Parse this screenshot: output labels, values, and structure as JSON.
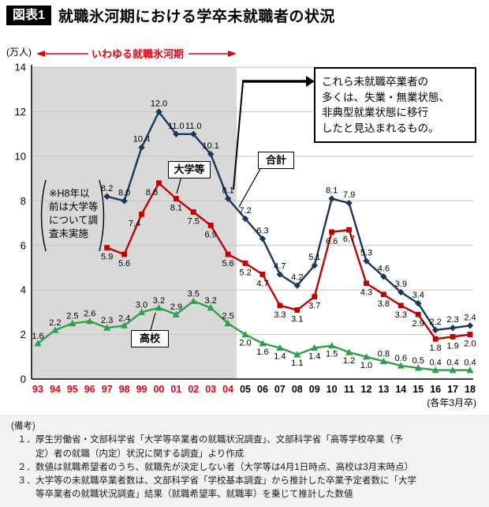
{
  "header": {
    "tag": "図表1",
    "title": "就職氷河期における学卒未就職者の状況"
  },
  "chart_data": {
    "type": "line",
    "title": "就職氷河期における学卒未就職者の状況",
    "y_unit_label": "(万人)",
    "x_axis_note": "(各年3月卒)",
    "ylim": [
      0,
      14
    ],
    "y_ticks": [
      0,
      2,
      4,
      6,
      8,
      10,
      12,
      14
    ],
    "grid": "horizontal",
    "categories": [
      "93",
      "94",
      "95",
      "96",
      "97",
      "98",
      "99",
      "00",
      "01",
      "02",
      "03",
      "04",
      "05",
      "06",
      "07",
      "08",
      "09",
      "10",
      "11",
      "12",
      "13",
      "14",
      "15",
      "16",
      "17",
      "18"
    ],
    "ice_age": {
      "label": "いわゆる就職氷河期",
      "from": "93",
      "to": "04",
      "color": "#e8000d",
      "region_fill": "#d9d9d9"
    },
    "series": [
      {
        "name": "合計",
        "color": "#17375e",
        "marker": "diamond",
        "values": [
          null,
          null,
          null,
          null,
          8.2,
          8.0,
          10.4,
          12.0,
          11.0,
          11.0,
          10.1,
          8.1,
          7.2,
          6.3,
          4.7,
          4.2,
          5.1,
          8.1,
          7.9,
          5.3,
          4.6,
          3.9,
          3.4,
          2.2,
          2.3,
          2.4
        ]
      },
      {
        "name": "大学等",
        "color": "#c00000",
        "marker": "square",
        "values": [
          null,
          null,
          null,
          null,
          5.9,
          5.6,
          7.4,
          8.8,
          8.1,
          7.5,
          6.9,
          5.6,
          5.2,
          4.7,
          3.3,
          3.1,
          3.7,
          6.6,
          6.7,
          4.3,
          3.8,
          3.3,
          2.9,
          1.8,
          1.9,
          2.0
        ]
      },
      {
        "name": "高校",
        "color": "#2fa04a",
        "marker": "triangle",
        "values": [
          1.6,
          2.2,
          2.5,
          2.6,
          2.3,
          2.4,
          3.0,
          3.2,
          2.9,
          3.5,
          3.2,
          2.5,
          2.0,
          1.6,
          1.4,
          1.1,
          1.4,
          1.5,
          1.2,
          1.0,
          0.8,
          0.6,
          0.5,
          0.4,
          0.4,
          0.4
        ]
      }
    ],
    "annotation_note": "※H8年以\n前は大学等\nについて調\n査未実施",
    "callout": "これら未就職卒業者の\n多くは、失業・無業状態、\n非典型就業状態に移行\nしたと見込まれるもの。"
  },
  "footer": {
    "caption": "(備考)",
    "lines": [
      "１．厚生労働省・文部科学省「大学等卒業者の就職状況調査」、文部科学省「高等学校卒業（予",
      "　　定）者の就職（内定）状況に関する調査」より作成",
      "２．数値は就職希望者のうち、就職先が決定しない者（大学等は4月1日時点、高校は3月末時点）",
      "３．大学等の未就職卒業者数は、文部科学省「学校基本調査」から推計した卒業予定者数に「大学",
      "　　等卒業者の就職状況調査」結果（就職希望率、就職率）を乗じて推計した数値"
    ]
  }
}
